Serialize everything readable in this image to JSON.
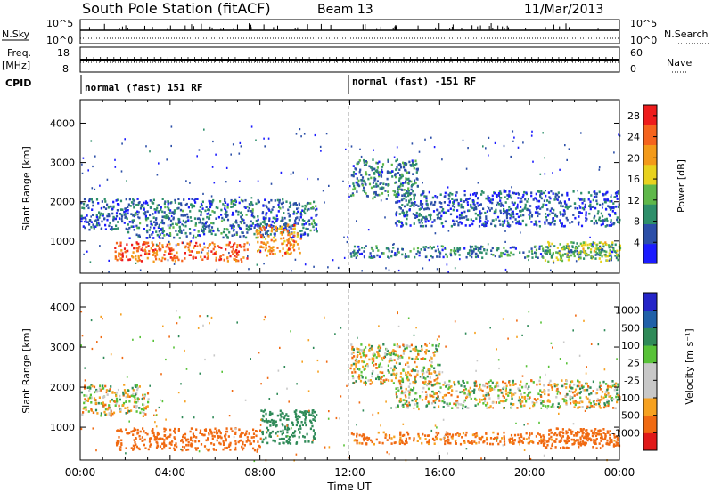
{
  "header": {
    "station": "South Pole Station (fitACF)",
    "beam": "Beam 13",
    "date": "11/Mar/2013"
  },
  "strips": {
    "nsky_label": "N.Sky",
    "nsky_ticks": [
      "10^5",
      "10^0"
    ],
    "nsearch_label": "N.Search",
    "nsearch_ticks": [
      "10^5",
      "10^0"
    ],
    "freq_label": [
      "Freq.",
      "[MHz]"
    ],
    "freq_ticks": [
      "18",
      "8"
    ],
    "nave_label": "Nave",
    "nave_ticks": [
      "60",
      "0"
    ],
    "cpid_label": "CPID",
    "cpid_segments": [
      "normal (fast) 151 RF",
      "normal (fast) -151 RF"
    ]
  },
  "colors": {
    "power": [
      "#1b1bff",
      "#2c4fa8",
      "#2e8f6a",
      "#5fb84a",
      "#e8d21e",
      "#f39a1a",
      "#f5641e",
      "#ee1c1c"
    ],
    "velocity": [
      "#e01919",
      "#f06a12",
      "#f6a120",
      "#c8c8c8",
      "#c8c8c8",
      "#58c238",
      "#2f8a58",
      "#2060a8",
      "#2424c8"
    ]
  },
  "chart_data": [
    {
      "type": "heatmap",
      "title": "",
      "xlabel": "",
      "ylabel": "Slant Range [km]",
      "xlim": [
        "00:00",
        "24:00"
      ],
      "ylim": [
        180,
        4600
      ],
      "x_ticks": [
        "00:00",
        "04:00",
        "08:00",
        "12:00",
        "16:00",
        "20:00",
        "00:00"
      ],
      "y_ticks": [
        "1000",
        "2000",
        "3000",
        "4000"
      ],
      "colorbar": {
        "label": "Power [dB]",
        "ticks": [
          "4",
          "8",
          "12",
          "16",
          "20",
          "24",
          "28"
        ],
        "range": [
          0,
          30
        ]
      },
      "echo_regions": [
        {
          "t_start": 0.0,
          "t_end": 2.0,
          "r_low": 1300,
          "r_high": 2100,
          "level": 6
        },
        {
          "t_start": 1.5,
          "t_end": 7.5,
          "r_low": 500,
          "r_high": 1000,
          "level": 24
        },
        {
          "t_start": 2.0,
          "t_end": 10.5,
          "r_low": 1100,
          "r_high": 2100,
          "level": 7
        },
        {
          "t_start": 7.8,
          "t_end": 9.8,
          "r_low": 650,
          "r_high": 1450,
          "level": 22
        },
        {
          "t_start": 12.0,
          "t_end": 15.0,
          "r_low": 2100,
          "r_high": 3100,
          "level": 8
        },
        {
          "t_start": 14.0,
          "t_end": 24.0,
          "r_low": 1400,
          "r_high": 2300,
          "level": 6
        },
        {
          "t_start": 12.0,
          "t_end": 24.0,
          "r_low": 600,
          "r_high": 900,
          "level": 8
        },
        {
          "t_start": 20.5,
          "t_end": 24.0,
          "r_low": 500,
          "r_high": 1000,
          "level": 14
        }
      ]
    },
    {
      "type": "heatmap",
      "title": "",
      "xlabel": "Time UT",
      "ylabel": "Slant Range [km]",
      "xlim": [
        "00:00",
        "24:00"
      ],
      "ylim": [
        180,
        4600
      ],
      "x_ticks": [
        "00:00",
        "04:00",
        "08:00",
        "12:00",
        "16:00",
        "20:00",
        "00:00"
      ],
      "y_ticks": [
        "1000",
        "2000",
        "3000",
        "4000"
      ],
      "colorbar": {
        "label": "Velocity [m s⁻¹]",
        "ticks": [
          "1000",
          "500",
          "100",
          "25",
          "-25",
          "-100",
          "-500",
          "-1000"
        ]
      },
      "echo_regions": [
        {
          "t_start": 0.0,
          "t_end": 3.0,
          "r_low": 1300,
          "r_high": 2100,
          "velocity": 0
        },
        {
          "t_start": 1.5,
          "t_end": 8.0,
          "r_low": 450,
          "r_high": 1000,
          "velocity": -300
        },
        {
          "t_start": 8.0,
          "t_end": 10.5,
          "r_low": 600,
          "r_high": 1450,
          "velocity": 250
        },
        {
          "t_start": 12.0,
          "t_end": 16.0,
          "r_low": 2100,
          "r_high": 3100,
          "velocity": 0
        },
        {
          "t_start": 14.0,
          "t_end": 24.0,
          "r_low": 1500,
          "r_high": 2200,
          "velocity": 0
        },
        {
          "t_start": 12.0,
          "t_end": 24.0,
          "r_low": 600,
          "r_high": 900,
          "velocity": -200
        },
        {
          "t_start": 20.5,
          "t_end": 24.0,
          "r_low": 500,
          "r_high": 1000,
          "velocity": -300
        }
      ]
    }
  ]
}
